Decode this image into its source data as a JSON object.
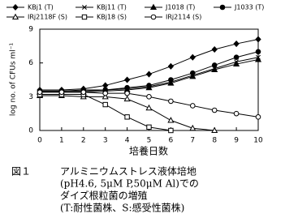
{
  "chart_data": {
    "type": "line",
    "x": [
      0,
      1,
      2,
      3,
      4,
      5,
      6,
      7,
      8,
      9,
      10
    ],
    "xlabel": "培養日数",
    "ylabel": "log no. of CFUs ml⁻¹",
    "xlim": [
      0,
      10
    ],
    "xticks": [
      0,
      1,
      2,
      3,
      4,
      5,
      6,
      7,
      8,
      9,
      10
    ],
    "ylim": [
      0,
      9
    ],
    "yticks": [
      0,
      3,
      6,
      9
    ],
    "series": [
      {
        "name": "KBj1 (T)",
        "color": "#000000",
        "marker": "diamond",
        "values": [
          3.6,
          3.6,
          3.7,
          4.0,
          4.5,
          5.0,
          5.7,
          6.5,
          7.2,
          7.7,
          8.1
        ]
      },
      {
        "name": "KBj11 (T)",
        "color": "#000000",
        "marker": "cross",
        "values": [
          3.5,
          3.5,
          3.5,
          3.6,
          3.7,
          3.9,
          4.3,
          4.9,
          5.5,
          6.1,
          6.5
        ]
      },
      {
        "name": "J1018 (T)",
        "color": "#000000",
        "marker": "triangle",
        "values": [
          3.4,
          3.4,
          3.4,
          3.5,
          3.6,
          3.8,
          4.2,
          4.8,
          5.4,
          5.9,
          6.3
        ]
      },
      {
        "name": "J1033 (T)",
        "color": "#000000",
        "marker": "circle",
        "values": [
          3.5,
          3.5,
          3.6,
          3.6,
          3.8,
          4.0,
          4.5,
          5.1,
          5.8,
          6.5,
          7.0
        ]
      },
      {
        "name": "IRj2118F (S)",
        "color": "#000000",
        "marker": "triangle-open",
        "values": [
          3.1,
          3.1,
          3.0,
          3.0,
          2.8,
          2.0,
          0.9,
          0.2,
          0,
          null,
          null
        ]
      },
      {
        "name": "KBj18 (S)",
        "color": "#000000",
        "marker": "square-open",
        "values": [
          3.2,
          3.2,
          3.2,
          2.3,
          1.2,
          0.3,
          0,
          null,
          null,
          null,
          null
        ]
      },
      {
        "name": "IRj2114 (S)",
        "color": "#000000",
        "marker": "circle-open",
        "values": [
          3.4,
          3.4,
          3.4,
          3.3,
          3.3,
          3.0,
          2.6,
          2.2,
          1.8,
          1.5,
          1.2
        ]
      }
    ],
    "caption": {
      "label": "図１",
      "lines": [
        "アルミニウムストレス液体培地",
        "(pH4.6, 5μM P,50μM Al)での",
        "ダイズ根粒菌の増殖",
        "(T:耐性菌株、S:感受性菌株)"
      ]
    }
  }
}
